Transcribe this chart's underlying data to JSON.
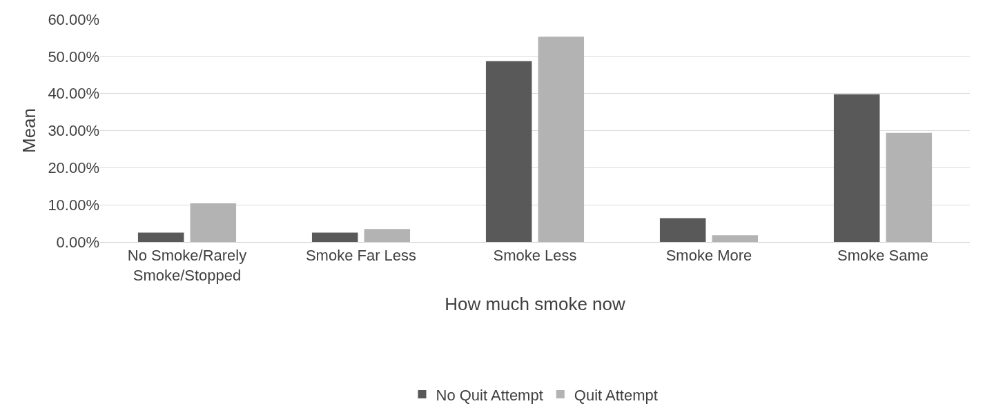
{
  "chart_data": {
    "type": "bar",
    "xlabel": "How much smoke now",
    "ylabel": "Mean",
    "categories": [
      "No Smoke/Rarely Smoke/Stopped",
      "Smoke Far Less",
      "Smoke Less",
      "Smoke More",
      "Smoke Same"
    ],
    "series": [
      {
        "name": "No Quit Attempt",
        "color": "#595959",
        "values": [
          2.5,
          2.5,
          48.7,
          6.4,
          39.8
        ]
      },
      {
        "name": "Quit Attempt",
        "color": "#b3b3b3",
        "values": [
          10.4,
          3.5,
          55.3,
          1.8,
          29.4
        ]
      }
    ],
    "ylim": [
      0,
      60
    ],
    "yticks": [
      {
        "value": 0,
        "label": "0.00%"
      },
      {
        "value": 10,
        "label": "10.00%"
      },
      {
        "value": 20,
        "label": "20.00%"
      },
      {
        "value": 30,
        "label": "30.00%"
      },
      {
        "value": 40,
        "label": "40.00%"
      },
      {
        "value": 50,
        "label": "50.00%"
      },
      {
        "value": 60,
        "label": "60.00%"
      }
    ],
    "grid": "y",
    "legend": "bottom"
  }
}
